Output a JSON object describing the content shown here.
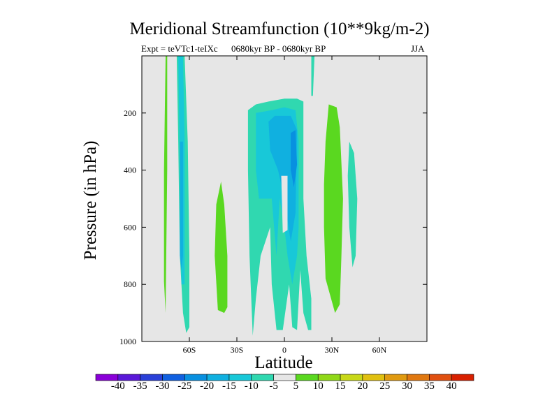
{
  "chart_data": {
    "type": "heatmap",
    "title": "Meridional Streamfunction (10**9kg/m-2)",
    "subtitle_left": "Expt = teVTc1-teIXc",
    "subtitle_center": "0680kyr BP - 0680kyr BP",
    "subtitle_right": "JJA",
    "xlabel": "Latitude",
    "ylabel": "Pressure (in hPa)",
    "xlim": [
      -90,
      90
    ],
    "ylim": [
      0,
      1000
    ],
    "x_ticks": [
      {
        "value": -60,
        "label": "60S"
      },
      {
        "value": -30,
        "label": "30S"
      },
      {
        "value": 0,
        "label": "0"
      },
      {
        "value": 30,
        "label": "30N"
      },
      {
        "value": 60,
        "label": "60N"
      }
    ],
    "y_ticks": [
      {
        "value": 200,
        "label": "200"
      },
      {
        "value": 400,
        "label": "400"
      },
      {
        "value": 600,
        "label": "600"
      },
      {
        "value": 800,
        "label": "800"
      },
      {
        "value": 1000,
        "label": "1000"
      }
    ],
    "background_color": "#e6e6e6",
    "colorbar": {
      "levels": [
        "-40",
        "-35",
        "-30",
        "-25",
        "-20",
        "-15",
        "-10",
        "-5",
        "5",
        "10",
        "15",
        "20",
        "25",
        "30",
        "35",
        "40"
      ],
      "colors": [
        "#8a00d8",
        "#5a18d8",
        "#2a40d8",
        "#1060e0",
        "#0890e0",
        "#10b0e0",
        "#18c8d8",
        "#30d8b0",
        "#e6e6e6",
        "#5ad820",
        "#90d818",
        "#c8d818",
        "#e0c010",
        "#e09a10",
        "#e07810",
        "#e05010",
        "#d82000"
      ]
    },
    "regions": [
      {
        "name": "south-polar-positive",
        "value": 7.5,
        "points": [
          [
            -75,
            0
          ],
          [
            -74,
            0
          ],
          [
            -74,
            400
          ],
          [
            -75,
            900
          ],
          [
            -76,
            790
          ],
          [
            -76,
            400
          ]
        ]
      },
      {
        "name": "south-polar-cell-outer",
        "value": -7.5,
        "points": [
          [
            -68,
            0
          ],
          [
            -63,
            0
          ],
          [
            -61,
            300
          ],
          [
            -60,
            700
          ],
          [
            -60,
            950
          ],
          [
            -62,
            970
          ],
          [
            -64,
            900
          ],
          [
            -66,
            700
          ],
          [
            -67,
            300
          ]
        ]
      },
      {
        "name": "south-polar-cell-core",
        "value": -12.5,
        "points": [
          [
            -67,
            0
          ],
          [
            -64,
            0
          ],
          [
            -63,
            300
          ],
          [
            -63,
            800
          ],
          [
            -65,
            800
          ],
          [
            -66,
            400
          ]
        ]
      },
      {
        "name": "south-polar-cell-inner",
        "value": -17.5,
        "points": [
          [
            -66,
            300
          ],
          [
            -64,
            300
          ],
          [
            -64,
            700
          ],
          [
            -65,
            750
          ],
          [
            -66,
            700
          ]
        ]
      },
      {
        "name": "south-midlat-positive",
        "value": 7.5,
        "points": [
          [
            -40,
            440
          ],
          [
            -38,
            520
          ],
          [
            -36,
            700
          ],
          [
            -36,
            880
          ],
          [
            -38,
            900
          ],
          [
            -42,
            890
          ],
          [
            -44,
            700
          ],
          [
            -43,
            520
          ]
        ]
      },
      {
        "name": "hadley-outer",
        "value": -7.5,
        "points": [
          [
            -23,
            190
          ],
          [
            -18,
            170
          ],
          [
            -10,
            160
          ],
          [
            0,
            150
          ],
          [
            8,
            150
          ],
          [
            12,
            160
          ],
          [
            12,
            300
          ],
          [
            12,
            500
          ],
          [
            14,
            700
          ],
          [
            17,
            850
          ],
          [
            17,
            960
          ],
          [
            15,
            960
          ],
          [
            12,
            900
          ],
          [
            10,
            750
          ],
          [
            8,
            960
          ],
          [
            5,
            950
          ],
          [
            3,
            800
          ],
          [
            -1,
            960
          ],
          [
            -5,
            960
          ],
          [
            -8,
            800
          ],
          [
            -9,
            600
          ],
          [
            -15,
            700
          ],
          [
            -18,
            850
          ],
          [
            -20,
            980
          ],
          [
            -22,
            700
          ],
          [
            -23,
            400
          ]
        ]
      },
      {
        "name": "hadley-mid",
        "value": -12.5,
        "points": [
          [
            -18,
            200
          ],
          [
            -8,
            190
          ],
          [
            0,
            180
          ],
          [
            7,
            190
          ],
          [
            9,
            300
          ],
          [
            9,
            600
          ],
          [
            8,
            700
          ],
          [
            5,
            800
          ],
          [
            2,
            700
          ],
          [
            0,
            600
          ],
          [
            -3,
            500
          ],
          [
            -5,
            700
          ],
          [
            -8,
            500
          ],
          [
            -12,
            500
          ],
          [
            -16,
            500
          ],
          [
            -18,
            400
          ]
        ]
      },
      {
        "name": "hadley-inner",
        "value": -17.5,
        "points": [
          [
            -10,
            230
          ],
          [
            -6,
            210
          ],
          [
            4,
            210
          ],
          [
            8,
            260
          ],
          [
            7,
            550
          ],
          [
            4,
            650
          ],
          [
            0,
            500
          ],
          [
            -4,
            400
          ],
          [
            -9,
            330
          ]
        ]
      },
      {
        "name": "hadley-core",
        "value": -22.5,
        "points": [
          [
            4,
            270
          ],
          [
            7,
            260
          ],
          [
            8,
            380
          ],
          [
            6,
            460
          ],
          [
            4,
            400
          ]
        ]
      },
      {
        "name": "hadley-core-south",
        "value": -17.5,
        "points": [
          [
            -8,
            240
          ],
          [
            -6,
            230
          ],
          [
            -4,
            270
          ],
          [
            -6,
            300
          ],
          [
            -9,
            290
          ]
        ]
      },
      {
        "name": "equatorial-gap",
        "value": 0,
        "points": [
          [
            -2,
            420
          ],
          [
            2,
            420
          ],
          [
            2,
            610
          ],
          [
            -1,
            620
          ]
        ]
      },
      {
        "name": "north-subtropical-positive",
        "value": 7.5,
        "points": [
          [
            28,
            170
          ],
          [
            33,
            180
          ],
          [
            35,
            250
          ],
          [
            37,
            500
          ],
          [
            36,
            700
          ],
          [
            35,
            870
          ],
          [
            32,
            900
          ],
          [
            26,
            780
          ],
          [
            25,
            600
          ],
          [
            25,
            450
          ],
          [
            26,
            300
          ]
        ]
      },
      {
        "name": "north-midlat-negative",
        "value": -7.5,
        "points": [
          [
            41,
            300
          ],
          [
            44,
            340
          ],
          [
            46,
            500
          ],
          [
            45,
            700
          ],
          [
            43,
            740
          ],
          [
            41,
            600
          ],
          [
            40,
            420
          ]
        ]
      },
      {
        "name": "north-tropical-streak",
        "value": -7.5,
        "points": [
          [
            17,
            0
          ],
          [
            19,
            0
          ],
          [
            18,
            140
          ],
          [
            17,
            140
          ]
        ]
      }
    ]
  }
}
